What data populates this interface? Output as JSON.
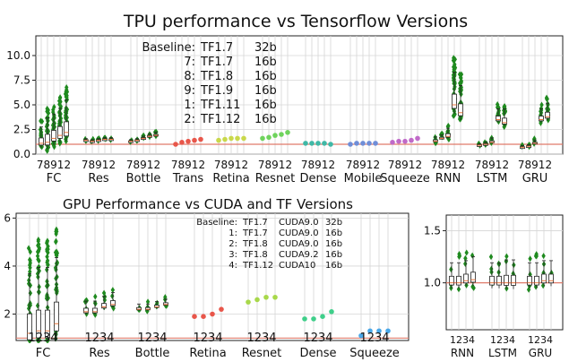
{
  "chart_data": [
    {
      "type": "box",
      "title": "TPU performance vs Tensorflow Versions",
      "ylim": [
        0,
        12
      ],
      "yticks": [
        "0.0",
        "2.5",
        "5.0",
        "7.5",
        "10.0"
      ],
      "ytick_values": [
        0,
        2.5,
        5,
        7.5,
        10
      ],
      "reference_line": 1.0,
      "grid": true,
      "version_ticks": [
        "7",
        "8",
        "9",
        "1",
        "2"
      ],
      "tick_text": "78912",
      "legend": {
        "title": "Baseline",
        "entries": [
          {
            "key": "Baseline:",
            "version": "TF1.7",
            "precision": "32b"
          },
          {
            "key": "7:",
            "version": "TF1.7",
            "precision": "16b"
          },
          {
            "key": "8:",
            "version": "TF1.8",
            "precision": "16b"
          },
          {
            "key": "9:",
            "version": "TF1.9",
            "precision": "16b"
          },
          {
            "key": "1:",
            "version": "TF1.11",
            "precision": "16b"
          },
          {
            "key": "2:",
            "version": "TF1.12",
            "precision": "16b"
          }
        ]
      },
      "groups": [
        {
          "name": "FC",
          "kind": "box",
          "values": [
            1.1,
            1.2,
            1.6,
            1.9,
            2.2
          ],
          "spread": [
            3.0,
            4.5,
            4.5,
            5.0,
            6.0
          ]
        },
        {
          "name": "Res",
          "kind": "box",
          "values": [
            1.4,
            1.3,
            1.4,
            1.5,
            1.5
          ],
          "spread": [
            0.3,
            0.3,
            0.3,
            0.3,
            0.3
          ]
        },
        {
          "name": "Bottle",
          "kind": "box",
          "values": [
            1.3,
            1.4,
            1.6,
            1.8,
            1.9
          ],
          "spread": [
            0.3,
            0.3,
            0.4,
            0.5,
            0.6
          ]
        },
        {
          "name": "Trans",
          "kind": "dot",
          "color": "#e8564a",
          "values": [
            1.0,
            1.2,
            1.3,
            1.4,
            1.5
          ]
        },
        {
          "name": "Retina",
          "kind": "dot",
          "color": "#c9d84a",
          "values": [
            1.4,
            1.5,
            1.6,
            1.6,
            1.6
          ]
        },
        {
          "name": "Resnet",
          "kind": "dot",
          "color": "#6fd35c",
          "values": [
            1.6,
            1.7,
            1.9,
            2.0,
            2.2
          ]
        },
        {
          "name": "Dense",
          "kind": "dot",
          "color": "#3fb8a6",
          "values": [
            1.1,
            1.1,
            1.1,
            1.1,
            1.0
          ]
        },
        {
          "name": "Mobile",
          "kind": "dot",
          "color": "#6f8ed8",
          "values": [
            1.0,
            1.1,
            1.1,
            1.1,
            1.1
          ]
        },
        {
          "name": "Squeeze",
          "kind": "dot",
          "color": "#c06ac8",
          "values": [
            1.2,
            1.3,
            1.3,
            1.4,
            1.6
          ]
        },
        {
          "name": "RNN",
          "kind": "box",
          "values": [
            1.3,
            1.6,
            1.8,
            5.0,
            4.2
          ],
          "spread": [
            0.8,
            0.6,
            1.5,
            6.0,
            5.0
          ]
        },
        {
          "name": "LSTM",
          "kind": "box",
          "values": [
            0.9,
            1.0,
            1.2,
            3.5,
            3.2
          ],
          "spread": [
            0.3,
            0.4,
            0.8,
            2.0,
            2.5
          ]
        },
        {
          "name": "GRU",
          "kind": "box",
          "values": [
            0.7,
            0.8,
            1.1,
            3.5,
            3.8
          ],
          "spread": [
            0.3,
            0.3,
            0.6,
            2.0,
            2.5
          ]
        }
      ]
    },
    {
      "type": "box",
      "title": "GPU Performance vs CUDA and TF Versions",
      "ylim": [
        0.9,
        6.2
      ],
      "yticks": [
        "2",
        "4",
        "6"
      ],
      "ytick_values": [
        2,
        4,
        6
      ],
      "reference_line": 1.0,
      "grid": true,
      "version_ticks": [
        "1",
        "2",
        "3",
        "4"
      ],
      "tick_text": "1234",
      "legend": {
        "entries": [
          {
            "key": "Baseline:",
            "version": "TF1.7",
            "cuda": "CUDA9.0",
            "precision": "32b"
          },
          {
            "key": "1:",
            "version": "TF1.7",
            "cuda": "CUDA9.0",
            "precision": "16b"
          },
          {
            "key": "2:",
            "version": "TF1.8",
            "cuda": "CUDA9.0",
            "precision": "16b"
          },
          {
            "key": "3:",
            "version": "TF1.8",
            "cuda": "CUDA9.2",
            "precision": "16b"
          },
          {
            "key": "4:",
            "version": "TF1.12",
            "cuda": "CUDA10",
            "precision": "16b"
          }
        ]
      },
      "groups": [
        {
          "name": "FC",
          "kind": "box",
          "values": [
            1.2,
            1.3,
            1.3,
            1.6
          ],
          "spread": [
            4.5,
            4.8,
            4.8,
            5.0
          ]
        },
        {
          "name": "Res",
          "kind": "box",
          "values": [
            2.1,
            2.1,
            2.3,
            2.4
          ],
          "spread": [
            0.8,
            0.8,
            0.8,
            0.9
          ]
        },
        {
          "name": "Bottle",
          "kind": "box",
          "values": [
            2.2,
            2.2,
            2.3,
            2.4
          ],
          "spread": [
            0.4,
            0.4,
            0.4,
            0.4
          ]
        },
        {
          "name": "Retina",
          "kind": "dot",
          "color": "#e8564a",
          "values": [
            1.9,
            1.9,
            2.0,
            2.2
          ]
        },
        {
          "name": "Resnet",
          "kind": "dot",
          "color": "#a8d84a",
          "values": [
            2.5,
            2.6,
            2.7,
            2.7
          ]
        },
        {
          "name": "Dense",
          "kind": "dot",
          "color": "#3fcf8a",
          "values": [
            1.8,
            1.8,
            1.9,
            2.1
          ]
        },
        {
          "name": "Squeeze",
          "kind": "dot",
          "color": "#4aa8e8",
          "values": [
            1.1,
            1.3,
            1.3,
            1.3
          ]
        }
      ]
    },
    {
      "type": "box",
      "title": "",
      "ylim": [
        0.55,
        1.65
      ],
      "yticks": [
        "1.0",
        "1.5"
      ],
      "ytick_values": [
        1.0,
        1.5
      ],
      "reference_line": 1.0,
      "grid": true,
      "version_ticks": [
        "1",
        "2",
        "3",
        "4"
      ],
      "tick_text": "1234",
      "groups": [
        {
          "name": "RNN",
          "kind": "box",
          "values": [
            1.0,
            1.0,
            1.02,
            1.03
          ],
          "spread": [
            0.35,
            0.35,
            0.35,
            0.4
          ]
        },
        {
          "name": "LSTM",
          "kind": "box",
          "values": [
            1.0,
            1.0,
            1.0,
            1.0
          ],
          "spread": [
            0.35,
            0.35,
            0.4,
            0.4
          ]
        },
        {
          "name": "GRU",
          "kind": "box",
          "values": [
            1.0,
            1.0,
            1.02,
            1.02
          ],
          "spread": [
            0.35,
            0.35,
            0.35,
            0.35
          ]
        }
      ]
    }
  ]
}
